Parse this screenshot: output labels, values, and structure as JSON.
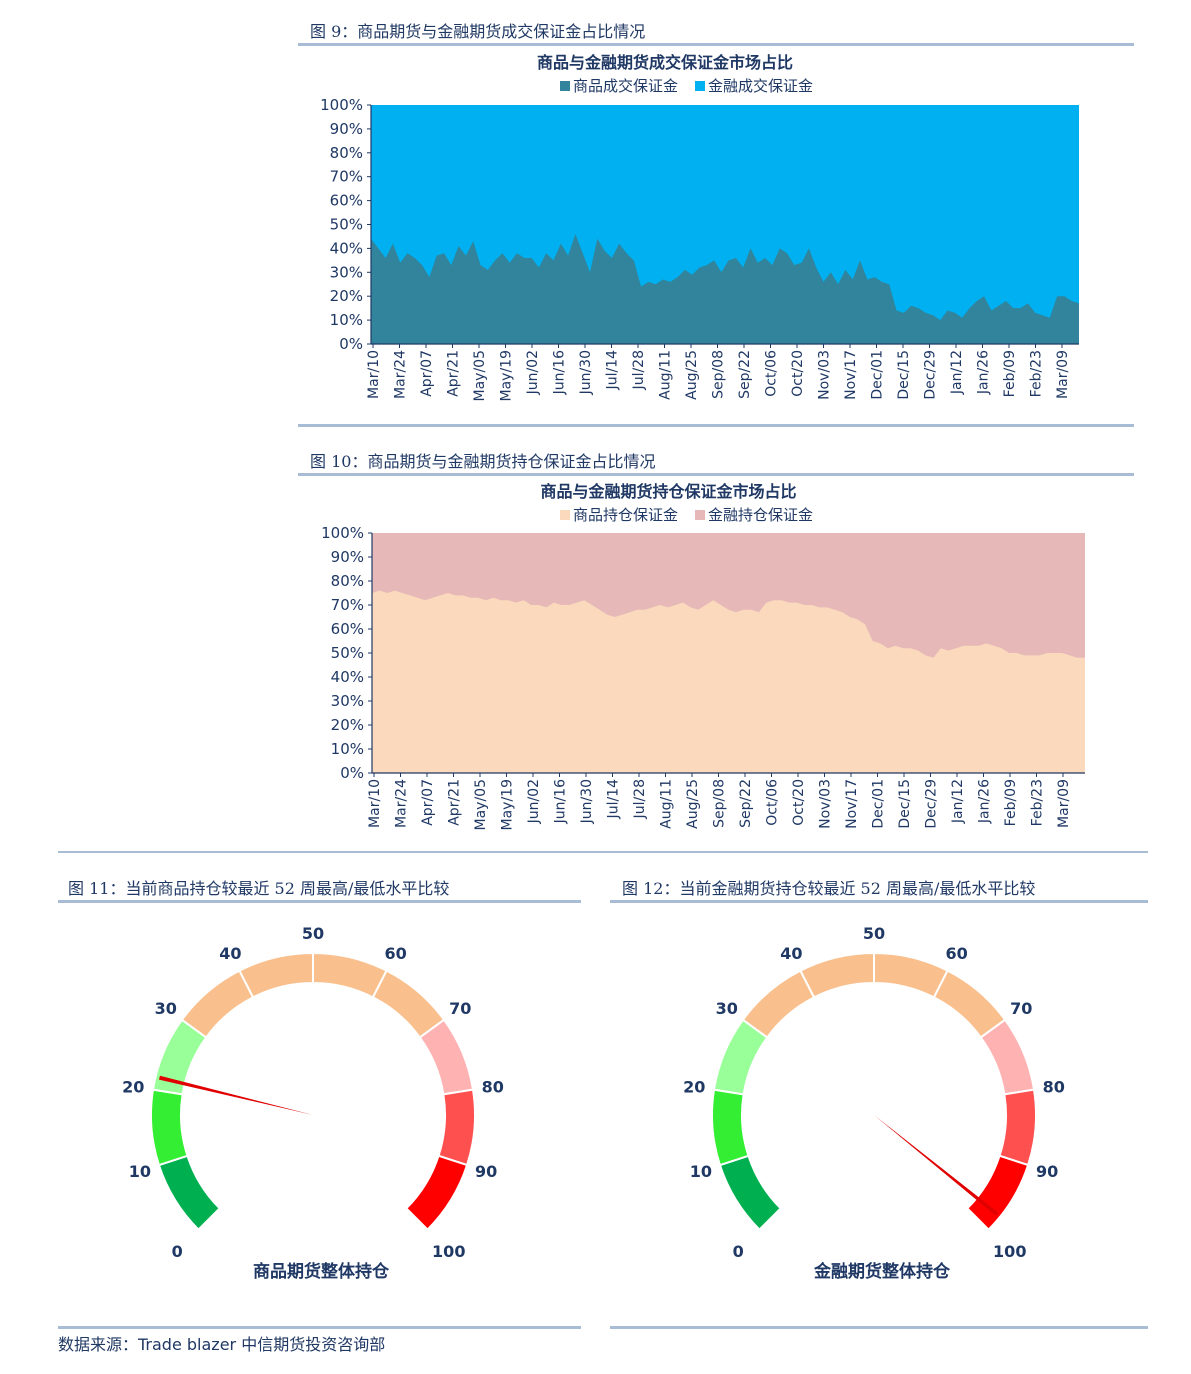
{
  "fig9": {
    "caption": "图 9：商品期货与金融期货成交保证金占比情况",
    "chart_data": {
      "type": "area",
      "title": "商品与金融期货成交保证金市场占比",
      "ylim": [
        0,
        100
      ],
      "y_ticks": [
        "0%",
        "10%",
        "20%",
        "30%",
        "40%",
        "50%",
        "60%",
        "70%",
        "80%",
        "90%",
        "100%"
      ],
      "x_tick_labels": [
        "Mar/10",
        "Mar/24",
        "Apr/07",
        "Apr/21",
        "May/05",
        "May/19",
        "Jun/02",
        "Jun/16",
        "Jun/30",
        "Jul/14",
        "Jul/28",
        "Aug/11",
        "Aug/25",
        "Sep/08",
        "Sep/22",
        "Oct/06",
        "Oct/20",
        "Nov/03",
        "Nov/17",
        "Dec/01",
        "Dec/15",
        "Dec/29",
        "Jan/12",
        "Jan/26",
        "Feb/09",
        "Feb/23",
        "Mar/09"
      ],
      "series": [
        {
          "name": "商品成交保证金",
          "color": "#31849b",
          "values": [
            44,
            40,
            36,
            42,
            34,
            38,
            36,
            33,
            28,
            37,
            38,
            33,
            41,
            37,
            43,
            33,
            31,
            35,
            38,
            34,
            38,
            36,
            36,
            32,
            38,
            35,
            42,
            37,
            46,
            38,
            30,
            44,
            39,
            36,
            42,
            38,
            35,
            24,
            26,
            25,
            27,
            26,
            28,
            31,
            29,
            32,
            33,
            35,
            30,
            35,
            36,
            32,
            40,
            34,
            36,
            33,
            40,
            38,
            33,
            34,
            40,
            32,
            26,
            30,
            25,
            31,
            27,
            35,
            27,
            28,
            26,
            25,
            14,
            13,
            16,
            15,
            13,
            12,
            10,
            14,
            13,
            11,
            15,
            18,
            20,
            14,
            16,
            18,
            15,
            15,
            17,
            13,
            12,
            11,
            20,
            20,
            18,
            17
          ]
        },
        {
          "name": "金融成交保证金",
          "color": "#00b0f0",
          "values": [
            56,
            60,
            64,
            58,
            66,
            62,
            64,
            67,
            72,
            63,
            62,
            67,
            59,
            63,
            57,
            67,
            69,
            65,
            62,
            66,
            62,
            64,
            64,
            68,
            62,
            65,
            58,
            63,
            54,
            62,
            70,
            56,
            61,
            64,
            58,
            62,
            65,
            76,
            74,
            75,
            73,
            74,
            72,
            69,
            71,
            68,
            67,
            65,
            70,
            65,
            64,
            68,
            60,
            66,
            64,
            67,
            60,
            62,
            67,
            66,
            60,
            68,
            74,
            70,
            75,
            69,
            73,
            65,
            73,
            72,
            74,
            75,
            86,
            87,
            84,
            85,
            87,
            88,
            90,
            86,
            87,
            89,
            85,
            82,
            80,
            86,
            84,
            82,
            85,
            85,
            83,
            87,
            88,
            89,
            80,
            80,
            82,
            83
          ]
        }
      ]
    }
  },
  "fig10": {
    "caption": "图 10：商品期货与金融期货持仓保证金占比情况",
    "chart_data": {
      "type": "area",
      "title": "商品与金融期货持仓保证金市场占比",
      "ylim": [
        0,
        100
      ],
      "y_ticks": [
        "0%",
        "10%",
        "20%",
        "30%",
        "40%",
        "50%",
        "60%",
        "70%",
        "80%",
        "90%",
        "100%"
      ],
      "x_tick_labels": [
        "Mar/10",
        "Mar/24",
        "Apr/07",
        "Apr/21",
        "May/05",
        "May/19",
        "Jun/02",
        "Jun/16",
        "Jun/30",
        "Jul/14",
        "Jul/28",
        "Aug/11",
        "Aug/25",
        "Sep/08",
        "Sep/22",
        "Oct/06",
        "Oct/20",
        "Nov/03",
        "Nov/17",
        "Dec/01",
        "Dec/15",
        "Dec/29",
        "Jan/12",
        "Jan/26",
        "Feb/09",
        "Feb/23",
        "Mar/09"
      ],
      "series": [
        {
          "name": "商品持仓保证金",
          "color": "#fad9bd",
          "values": [
            75,
            76,
            75,
            76,
            75,
            74,
            73,
            72,
            73,
            74,
            75,
            74,
            74,
            73,
            73,
            72,
            73,
            72,
            72,
            71,
            72,
            70,
            70,
            69,
            71,
            70,
            70,
            71,
            72,
            70,
            68,
            66,
            65,
            66,
            67,
            68,
            68,
            69,
            70,
            69,
            70,
            71,
            69,
            68,
            70,
            72,
            70,
            68,
            67,
            68,
            68,
            67,
            71,
            72,
            72,
            71,
            71,
            70,
            70,
            69,
            69,
            68,
            67,
            65,
            64,
            62,
            55,
            54,
            52,
            53,
            52,
            52,
            51,
            49,
            48,
            52,
            51,
            52,
            53,
            53,
            53,
            54,
            53,
            52,
            50,
            50,
            49,
            49,
            49,
            50,
            50,
            50,
            49,
            48,
            48
          ]
        },
        {
          "name": "金融持仓保证金",
          "color": "#e6b9b8",
          "values": [
            25,
            24,
            25,
            24,
            25,
            26,
            27,
            28,
            27,
            26,
            25,
            26,
            26,
            27,
            27,
            28,
            27,
            28,
            28,
            29,
            28,
            30,
            30,
            31,
            29,
            30,
            30,
            29,
            28,
            30,
            32,
            34,
            35,
            34,
            33,
            32,
            32,
            31,
            30,
            31,
            30,
            29,
            31,
            32,
            30,
            28,
            30,
            32,
            33,
            32,
            32,
            33,
            29,
            28,
            28,
            29,
            29,
            30,
            30,
            31,
            31,
            32,
            33,
            35,
            36,
            38,
            45,
            46,
            48,
            47,
            48,
            48,
            49,
            51,
            52,
            48,
            49,
            48,
            47,
            47,
            47,
            46,
            47,
            48,
            50,
            50,
            51,
            51,
            51,
            50,
            50,
            50,
            51,
            52,
            52
          ]
        }
      ]
    }
  },
  "fig11": {
    "caption": "图 11：当前商品持仓较最近 52 周最高/最低水平比较",
    "chart_data": {
      "type": "gauge",
      "value": 22,
      "min": 0,
      "max": 100,
      "ticks": [
        "0",
        "10",
        "20",
        "30",
        "40",
        "50",
        "60",
        "70",
        "80",
        "90",
        "100"
      ],
      "label": "商品期货整体持仓"
    }
  },
  "fig12": {
    "caption": "图 12：当前金融期货持仓较最近 52 周最高/最低水平比较",
    "chart_data": {
      "type": "gauge",
      "value": 98,
      "min": 0,
      "max": 100,
      "ticks": [
        "0",
        "10",
        "20",
        "30",
        "40",
        "50",
        "60",
        "70",
        "80",
        "90",
        "100"
      ],
      "label": "金融期货整体持仓"
    }
  },
  "gauge_colors": [
    "#00b050",
    "#33ee33",
    "#99ff99",
    "#f9c08e",
    "#f9c08e",
    "#f9c08e",
    "#f9c08e",
    "#ffb2b2",
    "#ff5050",
    "#ff0000"
  ],
  "needle_color": "#e00000",
  "source": "数据来源：Trade blazer  中信期货投资咨询部"
}
